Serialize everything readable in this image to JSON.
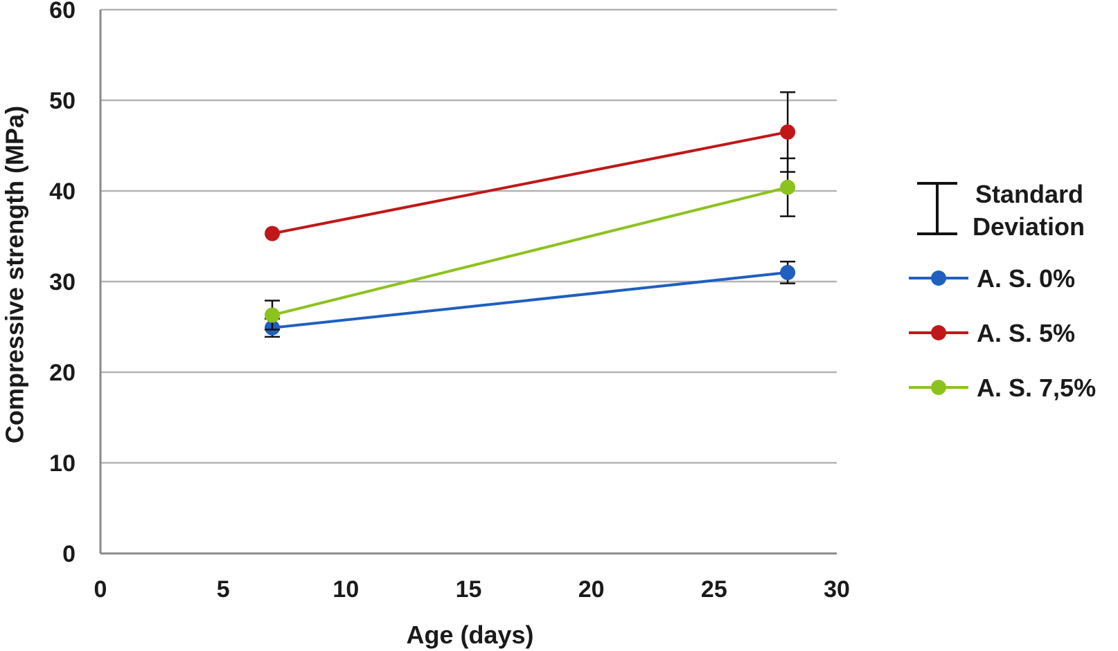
{
  "chart_data": {
    "type": "line",
    "title": "",
    "xlabel": "Age (days)",
    "ylabel": "Compressive strength (MPa)",
    "xlim": [
      0,
      30
    ],
    "ylim": [
      0,
      60
    ],
    "xticks": [
      0,
      5,
      10,
      15,
      20,
      25,
      30
    ],
    "yticks": [
      0,
      10,
      20,
      30,
      40,
      50,
      60
    ],
    "grid": "horizontal",
    "legend_position": "right",
    "error_bar_legend": "Standard Deviation",
    "series": [
      {
        "name": "A. S. 0%",
        "color": "#1f5fbf",
        "x": [
          7,
          28
        ],
        "y": [
          24.9,
          31.0
        ],
        "err": [
          1.0,
          1.2
        ]
      },
      {
        "name": "A. S. 5%",
        "color": "#c01818",
        "x": [
          7,
          28
        ],
        "y": [
          35.3,
          46.5
        ],
        "err": [
          0,
          4.4
        ]
      },
      {
        "name": "A. S. 7,5%",
        "color": "#8cc21e",
        "x": [
          7,
          28
        ],
        "y": [
          26.3,
          40.4
        ],
        "err": [
          1.6,
          3.2
        ]
      }
    ]
  }
}
